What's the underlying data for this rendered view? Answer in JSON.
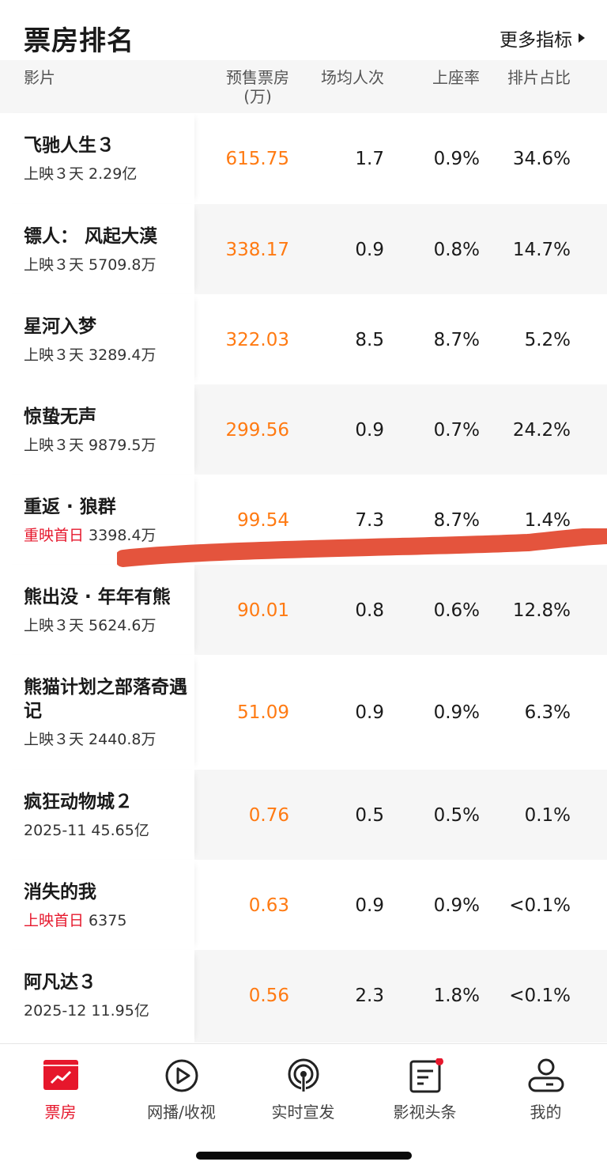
{
  "header": {
    "title": "票房排名",
    "more_label": "更多指标"
  },
  "columns": {
    "film": "影片",
    "presale_line1": "预售票房",
    "presale_line2": "(万)",
    "avg_per_show": "场均人次",
    "seat_rate": "上座率",
    "schedule_share": "排片占比"
  },
  "rows": [
    {
      "name": "飞驰人生３",
      "sub_tag": "",
      "sub": "上映３天 2.29亿",
      "presale": "615.75",
      "avg": "1.7",
      "seat": "0.9%",
      "share": "34.6%"
    },
    {
      "name": "镖人： 风起大漠",
      "sub_tag": "",
      "sub": "上映３天 5709.8万",
      "presale": "338.17",
      "avg": "0.9",
      "seat": "0.8%",
      "share": "14.7%"
    },
    {
      "name": "星河入梦",
      "sub_tag": "",
      "sub": "上映３天 3289.4万",
      "presale": "322.03",
      "avg": "8.5",
      "seat": "8.7%",
      "share": "5.2%"
    },
    {
      "name": "惊蛰无声",
      "sub_tag": "",
      "sub": "上映３天 9879.5万",
      "presale": "299.56",
      "avg": "0.9",
      "seat": "0.7%",
      "share": "24.2%"
    },
    {
      "name": "重返 · 狼群",
      "sub_tag": "重映首日",
      "sub": " 3398.4万",
      "presale": "99.54",
      "avg": "7.3",
      "seat": "8.7%",
      "share": "1.4%"
    },
    {
      "name": "熊出没 · 年年有熊",
      "sub_tag": "",
      "sub": "上映３天 5624.6万",
      "presale": "90.01",
      "avg": "0.8",
      "seat": "0.6%",
      "share": "12.8%"
    },
    {
      "name": "熊猫计划之部落奇遇记",
      "sub_tag": "",
      "sub": "上映３天 2440.8万",
      "presale": "51.09",
      "avg": "0.9",
      "seat": "0.9%",
      "share": "6.3%"
    },
    {
      "name": "疯狂动物城２",
      "sub_tag": "",
      "sub": "2025-11 45.65亿",
      "presale": "0.76",
      "avg": "0.5",
      "seat": "0.5%",
      "share": "0.1%"
    },
    {
      "name": "消失的我",
      "sub_tag": "上映首日",
      "sub": " 6375",
      "presale": "0.63",
      "avg": "0.9",
      "seat": "0.9%",
      "share": "<0.1%"
    },
    {
      "name": "阿凡达３",
      "sub_tag": "",
      "sub": "2025-12 11.95亿",
      "presale": "0.56",
      "avg": "2.3",
      "seat": "1.8%",
      "share": "<0.1%"
    }
  ],
  "tabs": [
    {
      "label": "票房",
      "icon": "box-office-chart-icon",
      "active": true
    },
    {
      "label": "网播/收视",
      "icon": "play-circle-icon",
      "active": false
    },
    {
      "label": "实时宣发",
      "icon": "broadcast-icon",
      "active": false
    },
    {
      "label": "影视头条",
      "icon": "news-icon",
      "active": false,
      "badge": true
    },
    {
      "label": "我的",
      "icon": "user-icon",
      "active": false
    }
  ],
  "colors": {
    "accent_red": "#e6172c",
    "presale_orange": "#ff7a12",
    "alt_row": "#f6f6f6",
    "annotation_mark": "#e2452c"
  }
}
